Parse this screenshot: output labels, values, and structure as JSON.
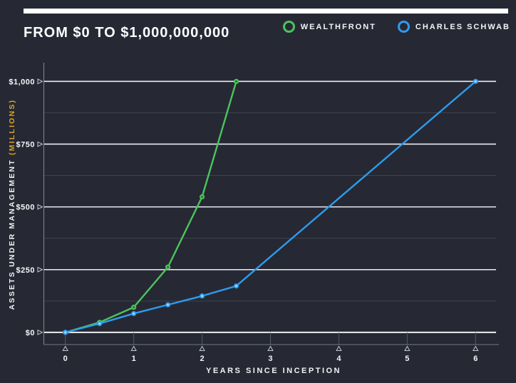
{
  "header": {
    "title": "FROM $0 TO $1,000,000,000",
    "legend": [
      {
        "label": "WEALTHFRONT",
        "color": "#4cc45c"
      },
      {
        "label": "CHARLES SCHWAB",
        "color": "#2e9cee"
      }
    ]
  },
  "axes": {
    "y_label_main": "ASSETS UNDER MANAGEMENT ",
    "y_label_unit": "(MILLIONS)",
    "x_label": "YEARS SINCE INCEPTION"
  },
  "colors": {
    "background": "#262934",
    "title_text": "#ffffff",
    "top_bar": "#ffffff",
    "major_gridline": "#eceef0",
    "minor_gridline": "#3f434e",
    "axis_border": "#9aa0aa",
    "tick_stub": "#565a64",
    "tick_arrow": "#c4c8cf",
    "tick_text": "#f5f6f7",
    "y_unit_text": "#dda126",
    "wealthfront_green": "#4cc45c",
    "schwab_blue": "#2e9cee"
  },
  "chart_data": {
    "type": "line",
    "title": "FROM $0 TO $1,000,000,000",
    "xlabel": "YEARS SINCE INCEPTION",
    "ylabel": "ASSETS UNDER MANAGEMENT (MILLIONS)",
    "xlim": [
      0,
      6
    ],
    "ylim": [
      0,
      1000
    ],
    "grid": "horizontal",
    "legend_position": "top-right",
    "x_ticks": [
      0,
      1,
      2,
      3,
      4,
      5,
      6
    ],
    "y_ticks": [
      {
        "value": 0,
        "label": "$0"
      },
      {
        "value": 250,
        "label": "$250"
      },
      {
        "value": 500,
        "label": "$500"
      },
      {
        "value": 750,
        "label": "$750"
      },
      {
        "value": 1000,
        "label": "$1,000"
      }
    ],
    "minor_gridlines": [
      125,
      375,
      625,
      875
    ],
    "series": [
      {
        "name": "WEALTHFRONT",
        "color": "#4cc45c",
        "marker_inner": "#2f7a3a",
        "points": [
          [
            0,
            0
          ],
          [
            0.5,
            40
          ],
          [
            1,
            100
          ],
          [
            1.5,
            260
          ],
          [
            2,
            540
          ],
          [
            2.5,
            1000
          ]
        ]
      },
      {
        "name": "CHARLES SCHWAB",
        "color": "#2e9cee",
        "marker_inner": "#a8d8ff",
        "points": [
          [
            0,
            0
          ],
          [
            0.5,
            35
          ],
          [
            1,
            75
          ],
          [
            1.5,
            110
          ],
          [
            2,
            145
          ],
          [
            2.5,
            185
          ],
          [
            6,
            1000
          ]
        ]
      }
    ]
  }
}
